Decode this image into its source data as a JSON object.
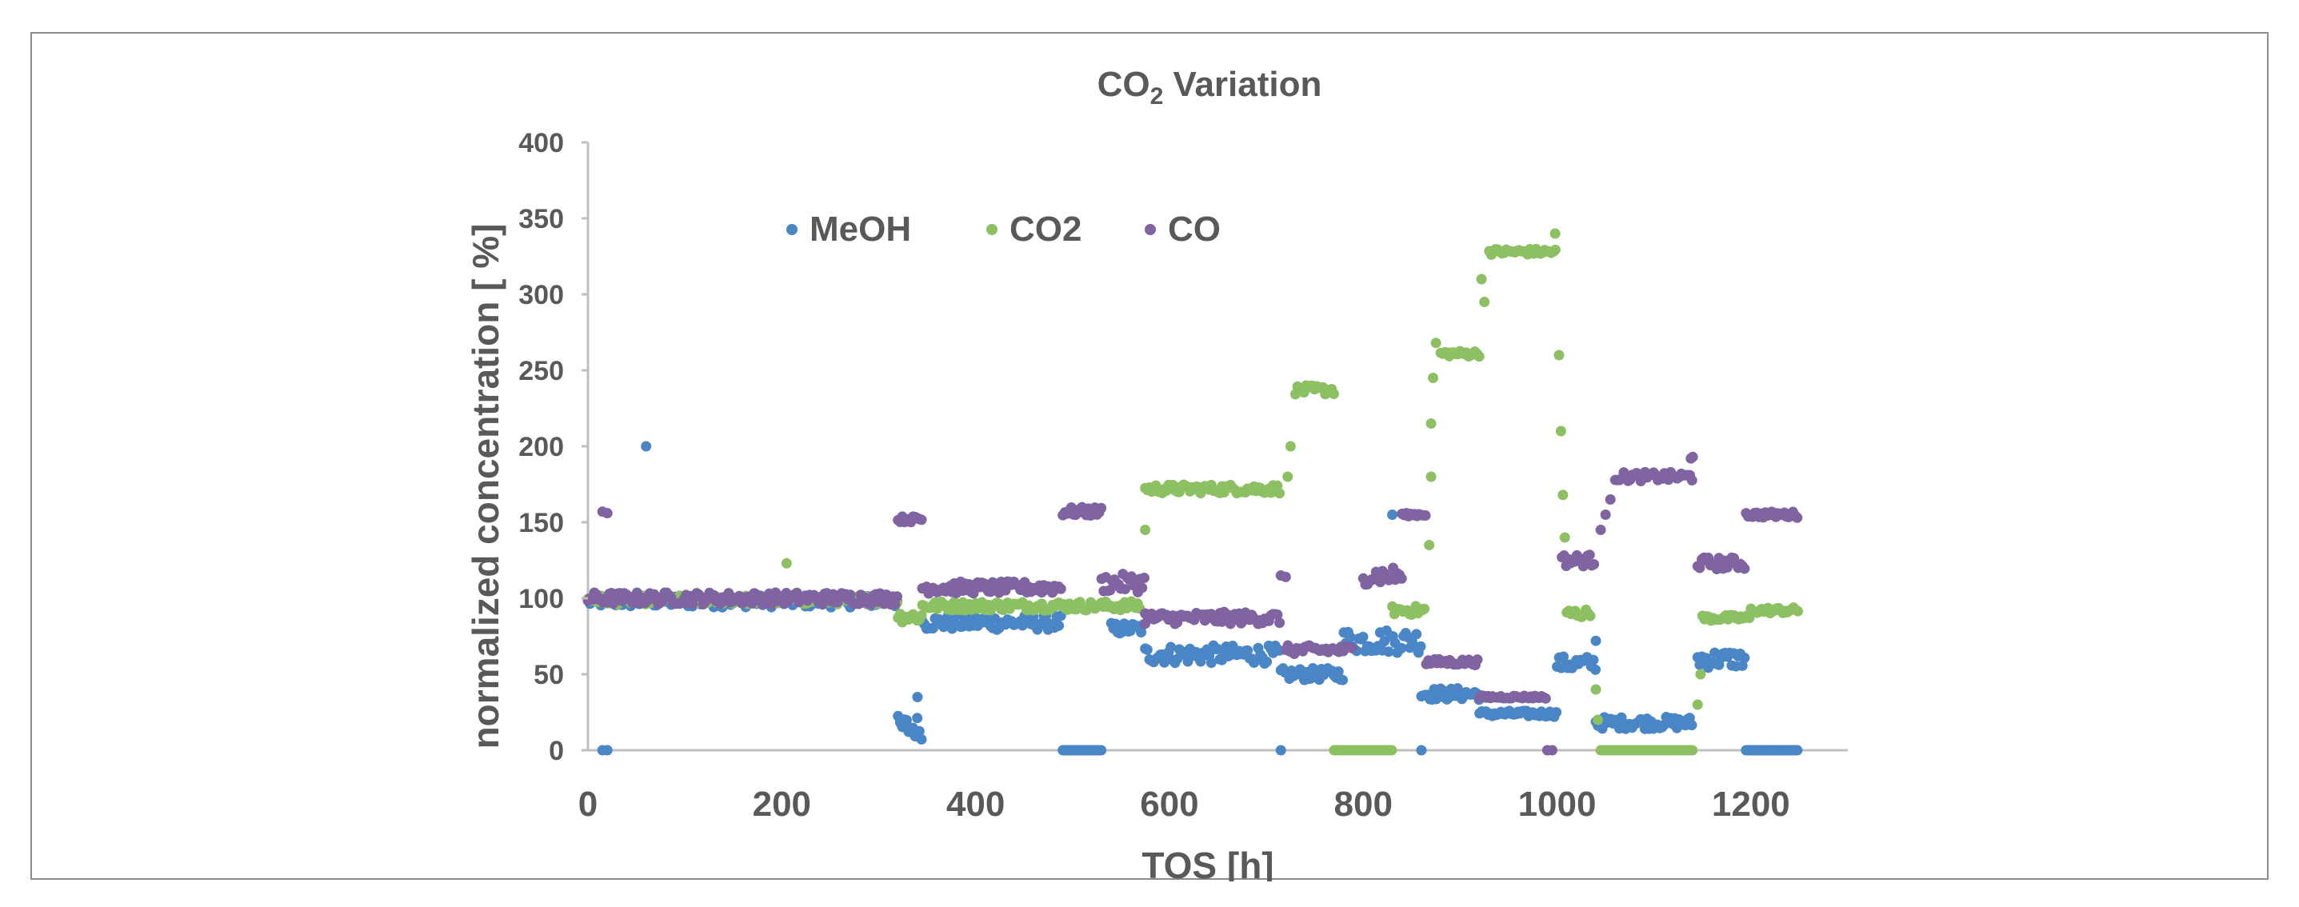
{
  "chart_data": {
    "type": "scatter",
    "title_main": "CO",
    "title_sub": "2",
    "title_rest": " Variation",
    "xlabel": "TOS  [h]",
    "ylabel": "normalized concentration  [ %]",
    "xlim": [
      0,
      1300
    ],
    "ylim": [
      0,
      400
    ],
    "x_ticks": [
      0,
      200,
      400,
      600,
      800,
      1000,
      1200
    ],
    "y_ticks": [
      0,
      50,
      100,
      150,
      200,
      250,
      300,
      350,
      400
    ],
    "legend_position": "top-left inside plot",
    "series": [
      {
        "name": "MeOH",
        "color": "#4a86c5",
        "segments": [
          {
            "x": [
              0,
              320
            ],
            "y": 98,
            "noise": 4
          },
          {
            "x": [
              320,
              345
            ],
            "y": 15,
            "noise": 8
          },
          {
            "x": [
              345,
              490
            ],
            "y": 84,
            "noise": 5
          },
          {
            "x": [
              490,
              530
            ],
            "y": 0,
            "noise": 0
          },
          {
            "x": [
              540,
              575
            ],
            "y": 80,
            "noise": 4
          },
          {
            "x": [
              575,
              715
            ],
            "y": 63,
            "noise": 6
          },
          {
            "x": [
              715,
              780
            ],
            "y": 50,
            "noise": 4
          },
          {
            "x": [
              780,
              860
            ],
            "y": 72,
            "noise": 8
          },
          {
            "x": [
              860,
              920
            ],
            "y": 37,
            "noise": 4
          },
          {
            "x": [
              920,
              1000
            ],
            "y": 24,
            "noise": 2
          },
          {
            "x": [
              1000,
              1040
            ],
            "y": 57,
            "noise": 5
          },
          {
            "x": [
              1040,
              1140
            ],
            "y": 18,
            "noise": 4
          },
          {
            "x": [
              1145,
              1195
            ],
            "y": 60,
            "noise": 6
          },
          {
            "x": [
              1195,
              1250
            ],
            "y": 0,
            "noise": 0
          }
        ],
        "extra_points": [
          [
            60,
            200
          ],
          [
            15,
            0
          ],
          [
            20,
            0
          ],
          [
            500,
            0
          ],
          [
            715,
            0
          ],
          [
            860,
            0
          ],
          [
            990,
            0
          ],
          [
            830,
            155
          ],
          [
            1040,
            72
          ],
          [
            340,
            35
          ]
        ]
      },
      {
        "name": "CO2",
        "color": "#8cc063",
        "segments": [
          {
            "x": [
              0,
              320
            ],
            "y": 99,
            "noise": 3
          },
          {
            "x": [
              320,
              345
            ],
            "y": 88,
            "noise": 4
          },
          {
            "x": [
              345,
              570
            ],
            "y": 95,
            "noise": 3
          },
          {
            "x": [
              575,
              715
            ],
            "y": 172,
            "noise": 3
          },
          {
            "x": [
              730,
              770
            ],
            "y": 237,
            "noise": 3
          },
          {
            "x": [
              770,
              830
            ],
            "y": 0,
            "noise": 0
          },
          {
            "x": [
              830,
              865
            ],
            "y": 92,
            "noise": 3
          },
          {
            "x": [
              880,
              920
            ],
            "y": 261,
            "noise": 2
          },
          {
            "x": [
              930,
              1000
            ],
            "y": 328,
            "noise": 2
          },
          {
            "x": [
              1010,
              1035
            ],
            "y": 90,
            "noise": 3
          },
          {
            "x": [
              1045,
              1140
            ],
            "y": 0,
            "noise": 0
          },
          {
            "x": [
              1150,
              1200
            ],
            "y": 87,
            "noise": 2
          },
          {
            "x": [
              1200,
              1250
            ],
            "y": 92,
            "noise": 2
          }
        ],
        "extra_points": [
          [
            205,
            123
          ],
          [
            575,
            145
          ],
          [
            870,
            215
          ],
          [
            872,
            245
          ],
          [
            875,
            268
          ],
          [
            925,
            295
          ],
          [
            922,
            310
          ],
          [
            998,
            340
          ],
          [
            1002,
            260
          ],
          [
            1004,
            210
          ],
          [
            1006,
            168
          ],
          [
            1008,
            140
          ],
          [
            1040,
            40
          ],
          [
            1042,
            20
          ],
          [
            1145,
            30
          ],
          [
            1148,
            50
          ],
          [
            870,
            180
          ],
          [
            868,
            135
          ],
          [
            725,
            200
          ],
          [
            722,
            180
          ]
        ]
      },
      {
        "name": "CO",
        "color": "#8064a2",
        "segments": [
          {
            "x": [
              0,
              320
            ],
            "y": 100,
            "noise": 4
          },
          {
            "x": [
              320,
              345
            ],
            "y": 152,
            "noise": 2
          },
          {
            "x": [
              345,
              490
            ],
            "y": 107,
            "noise": 4
          },
          {
            "x": [
              490,
              530
            ],
            "y": 157,
            "noise": 3
          },
          {
            "x": [
              530,
              575
            ],
            "y": 110,
            "noise": 6
          },
          {
            "x": [
              575,
              715
            ],
            "y": 87,
            "noise": 4
          },
          {
            "x": [
              720,
              790
            ],
            "y": 66,
            "noise": 3
          },
          {
            "x": [
              800,
              840
            ],
            "y": 115,
            "noise": 6
          },
          {
            "x": [
              840,
              865
            ],
            "y": 155,
            "noise": 1
          },
          {
            "x": [
              865,
              920
            ],
            "y": 58,
            "noise": 2
          },
          {
            "x": [
              920,
              990
            ],
            "y": 35,
            "noise": 1
          },
          {
            "x": [
              1005,
              1040
            ],
            "y": 125,
            "noise": 4
          },
          {
            "x": [
              1060,
              1140
            ],
            "y": 180,
            "noise": 3
          },
          {
            "x": [
              1145,
              1195
            ],
            "y": 123,
            "noise": 4
          },
          {
            "x": [
              1195,
              1250
            ],
            "y": 155,
            "noise": 2
          }
        ],
        "extra_points": [
          [
            15,
            157
          ],
          [
            20,
            156
          ],
          [
            990,
            0
          ],
          [
            995,
            0
          ],
          [
            1050,
            155
          ],
          [
            1055,
            165
          ],
          [
            1045,
            145
          ],
          [
            715,
            115
          ],
          [
            720,
            114
          ],
          [
            1140,
            193
          ],
          [
            1138,
            192
          ],
          [
            575,
            90
          ]
        ]
      }
    ]
  }
}
